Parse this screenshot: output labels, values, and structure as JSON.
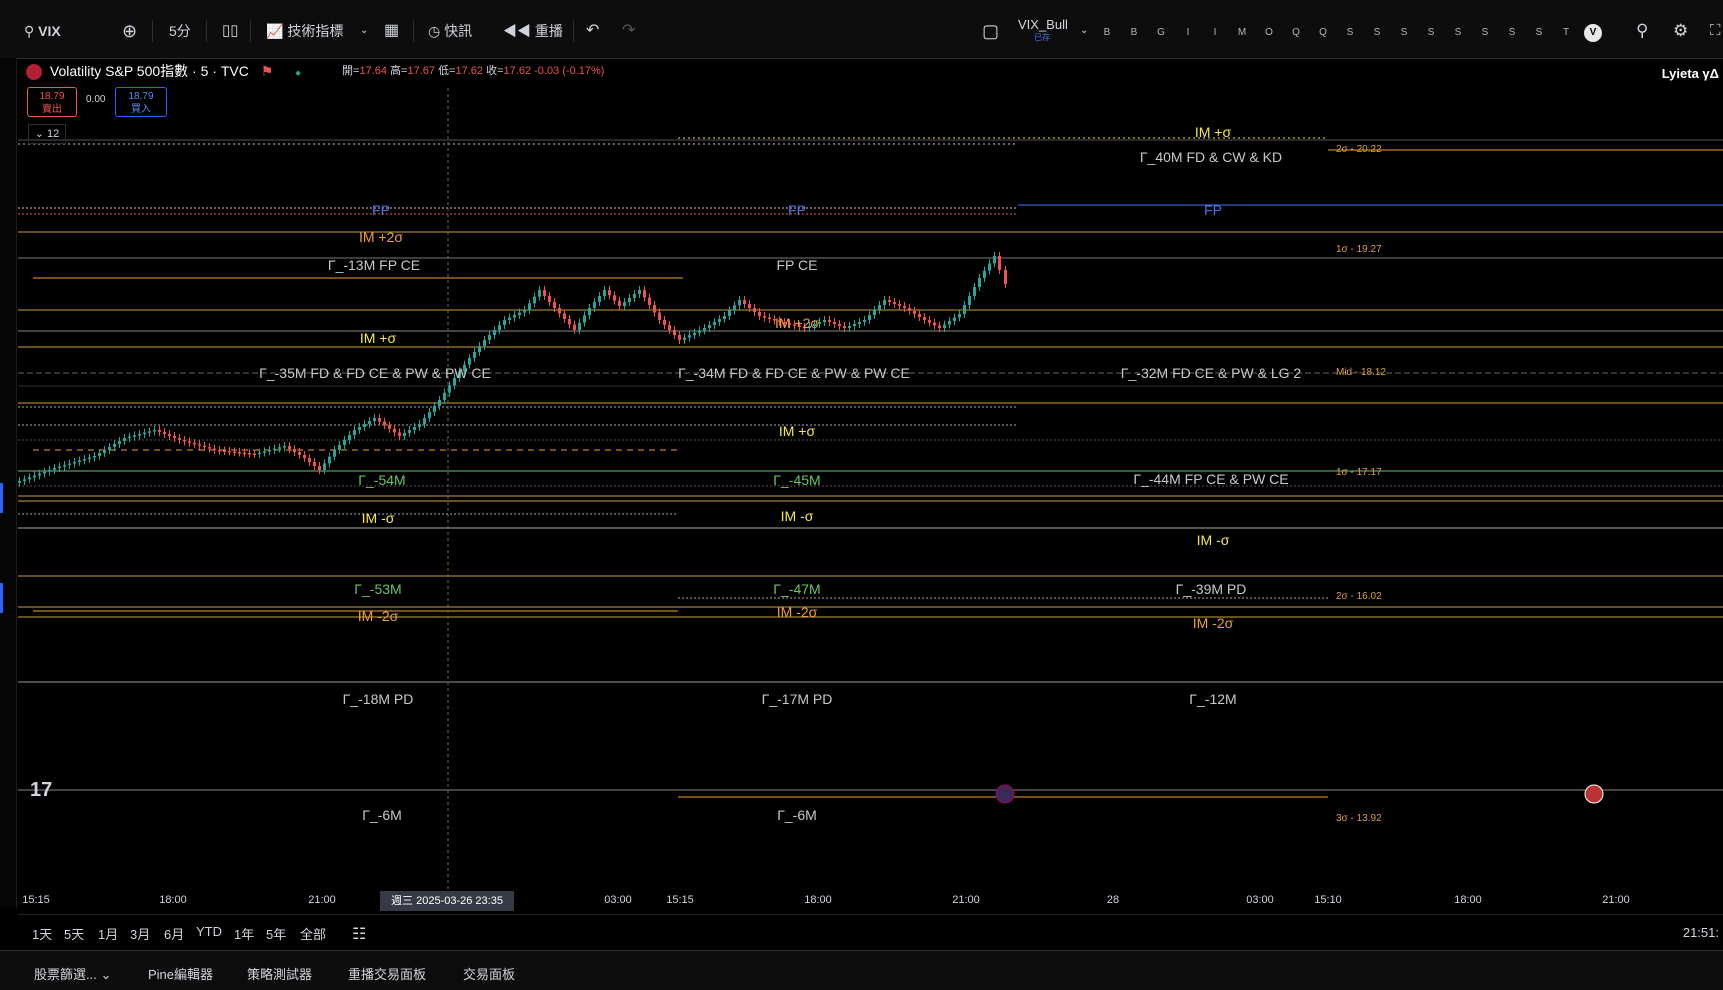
{
  "toolbar": {
    "symbol": "VIX",
    "interval": "5分",
    "indicators": "技術指標",
    "alert": "快訊",
    "replay": "重播",
    "layout_name": "VIX_Bull",
    "layout_sub": "已存",
    "indicator_buttons": [
      "B",
      "B",
      "G",
      "I",
      "I",
      "M",
      "O",
      "Q",
      "Q",
      "S",
      "S",
      "S",
      "S",
      "S",
      "S",
      "S",
      "S",
      "T",
      "V"
    ]
  },
  "legend": {
    "title": "Volatility S&P 500指數 · 5 · TVC",
    "open_label": "開=",
    "open": "17.64",
    "high_label": "高=",
    "high": "17.67",
    "low_label": "低=",
    "low": "17.62",
    "close_label": "收=",
    "close": "17.62",
    "change": "-0.03 (-0.17%)",
    "sell_price": "18.79",
    "sell_label": "賣出",
    "spread": "0.00",
    "buy_price": "18.79",
    "buy_label": "買入",
    "collapse_count": "12"
  },
  "user": {
    "name": "Lyieta γΔ"
  },
  "levels": {
    "group1": {
      "fp": "FP",
      "im_plus2": "IM +2σ",
      "g13": "Γ_-13M  FP CE",
      "im_plus1": "IM +σ",
      "g35": "Γ_-35M  FD & FD CE & PW & PW CE",
      "g54": "Γ_-54M",
      "im_minus1": "IM -σ",
      "g53": "Γ_-53M",
      "im_minus2": "IM -2σ",
      "g18": "Γ_-18M  PD",
      "g6": "Γ_-6M"
    },
    "group2": {
      "fp": "FP",
      "fpce": "FP CE",
      "im_plus2": "IM +2σ",
      "g34": "Γ_-34M  FD & FD CE & PW & PW CE",
      "im_plus1": "IM +σ",
      "g45": "Γ_-45M",
      "im_minus1": "IM -σ",
      "g47": "Γ_-47M",
      "im_minus2": "IM -2σ",
      "g17": "Γ_-17M  PD",
      "g6": "Γ_-6M"
    },
    "group3": {
      "im_plus1": "IM +σ",
      "g40": "Γ_40M  FD & CW & KD",
      "fp": "FP",
      "g32": "Γ_-32M  FD CE & PW & LG 2",
      "g44": "Γ_-44M  FP CE & PW CE",
      "im_minus1": "IM -σ",
      "g39": "Γ_-39M  PD",
      "im_minus2": "IM -2σ",
      "g12": "Γ_-12M"
    },
    "sigma": {
      "s2_up": "2σ - 20.22",
      "s1_up": "1σ - 19.27",
      "mid": "Mid - 18.12",
      "s1_dn": "1σ - 17.17",
      "s2_dn": "2σ - 16.02",
      "s3_dn": "3σ - 13.92"
    }
  },
  "xaxis": {
    "labels": [
      "15:15",
      "18:00",
      "21:00",
      "03:00",
      "15:15",
      "18:00",
      "21:00",
      "28",
      "03:00",
      "15:10",
      "18:00",
      "21:00"
    ],
    "cursor": "週三 2025-03-26   23:35"
  },
  "ranges": [
    "1天",
    "5天",
    "1月",
    "3月",
    "6月",
    "YTD",
    "1年",
    "5年",
    "全部"
  ],
  "clock": "21:51:",
  "bottom_tabs": [
    "股票篩選...",
    "Pine編輯器",
    "策略測試器",
    "重播交易面板",
    "交易面板"
  ],
  "colors": {
    "bull": "#26a69a",
    "bear": "#ef5350",
    "im_plus": "#f5e94a",
    "im_2": "#f0a030",
    "gamma": "#c8c8c8",
    "gamma_neg": "#6ac26a",
    "fp": "#4a74e8"
  }
}
